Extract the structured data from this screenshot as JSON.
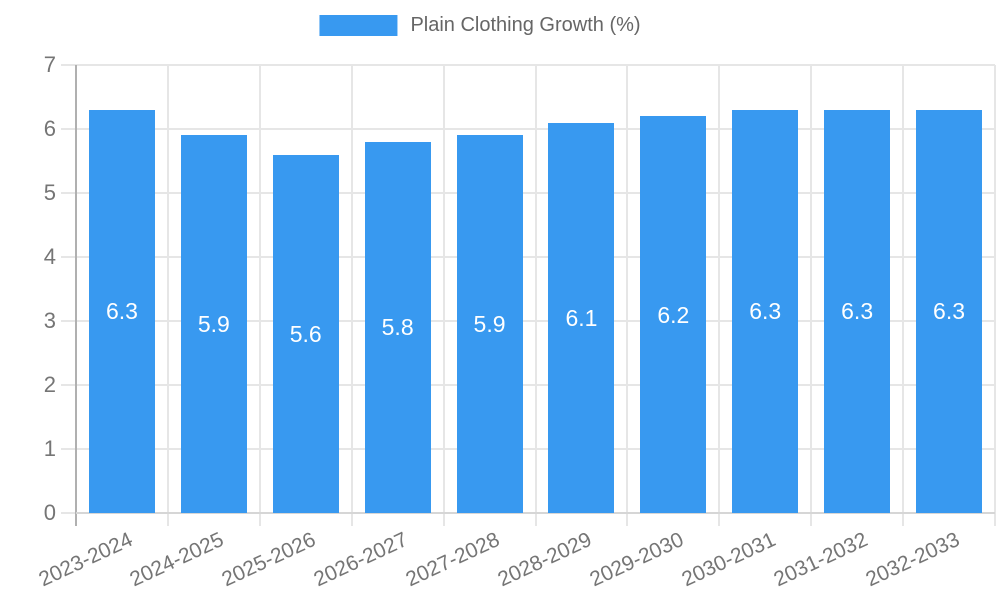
{
  "legend": {
    "label": "Plain Clothing Growth (%)"
  },
  "chart_data": {
    "type": "bar",
    "title": "",
    "xlabel": "",
    "ylabel": "",
    "categories": [
      "2023-2024",
      "2024-2025",
      "2025-2026",
      "2026-2027",
      "2027-2028",
      "2028-2029",
      "2029-2030",
      "2030-2031",
      "2031-2032",
      "2032-2033"
    ],
    "series": [
      {
        "name": "Plain Clothing Growth (%)",
        "values": [
          6.3,
          5.9,
          5.6,
          5.8,
          5.9,
          6.1,
          6.2,
          6.3,
          6.3,
          6.3
        ]
      }
    ],
    "bar_labels": [
      "6.3",
      "5.9",
      "5.6",
      "5.8",
      "5.9",
      "6.1",
      "6.2",
      "6.3",
      "6.3",
      "6.3"
    ],
    "ylim": [
      0,
      7
    ],
    "y_ticks": [
      0,
      1,
      2,
      3,
      4,
      5,
      6,
      7
    ],
    "grid": true,
    "legend_position": "top"
  },
  "colors": {
    "bar": "#3899f0",
    "bar_label": "#ffffff",
    "grid": "#e6e6e6",
    "axis_y": "#b0b0b0",
    "axis_x": "#d6d6d6",
    "tick": "#e6e6e6",
    "tick_label": "#757575",
    "legend_text": "#666666",
    "background": "#ffffff"
  }
}
